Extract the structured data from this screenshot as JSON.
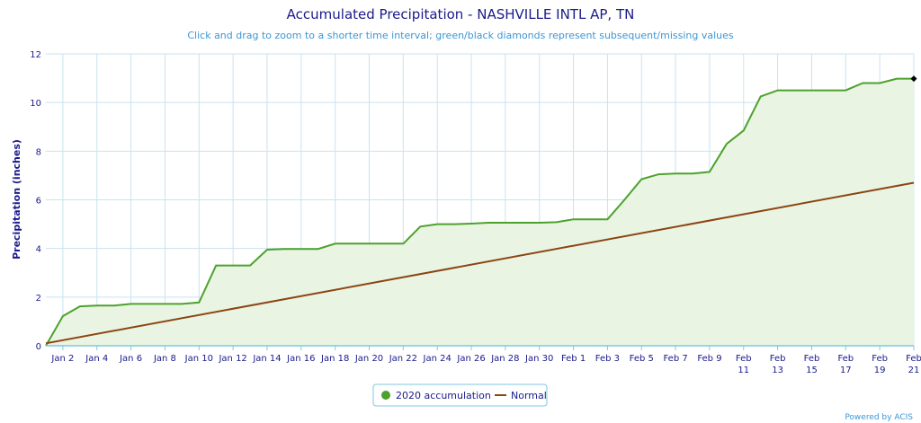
{
  "chart_data": {
    "type": "area",
    "title": "Accumulated Precipitation - NASHVILLE INTL AP, TN",
    "subtitle": "Click and drag to zoom to a shorter time interval; green/black diamonds represent subsequent/missing values",
    "ylabel": "Precipitation (inches)",
    "xlabel": "",
    "ylim": [
      0,
      12
    ],
    "yticks": [
      0,
      2,
      4,
      6,
      8,
      10,
      12
    ],
    "grid": true,
    "start_date": "2020-01-01",
    "end_date": "2020-02-21",
    "x_tick_labels": [
      {
        "date": "2020-01-02",
        "lines": [
          "Jan 2"
        ]
      },
      {
        "date": "2020-01-04",
        "lines": [
          "Jan 4"
        ]
      },
      {
        "date": "2020-01-06",
        "lines": [
          "Jan 6"
        ]
      },
      {
        "date": "2020-01-08",
        "lines": [
          "Jan 8"
        ]
      },
      {
        "date": "2020-01-10",
        "lines": [
          "Jan 10"
        ]
      },
      {
        "date": "2020-01-12",
        "lines": [
          "Jan 12"
        ]
      },
      {
        "date": "2020-01-14",
        "lines": [
          "Jan 14"
        ]
      },
      {
        "date": "2020-01-16",
        "lines": [
          "Jan 16"
        ]
      },
      {
        "date": "2020-01-18",
        "lines": [
          "Jan 18"
        ]
      },
      {
        "date": "2020-01-20",
        "lines": [
          "Jan 20"
        ]
      },
      {
        "date": "2020-01-22",
        "lines": [
          "Jan 22"
        ]
      },
      {
        "date": "2020-01-24",
        "lines": [
          "Jan 24"
        ]
      },
      {
        "date": "2020-01-26",
        "lines": [
          "Jan 26"
        ]
      },
      {
        "date": "2020-01-28",
        "lines": [
          "Jan 28"
        ]
      },
      {
        "date": "2020-01-30",
        "lines": [
          "Jan 30"
        ]
      },
      {
        "date": "2020-02-01",
        "lines": [
          "Feb 1"
        ]
      },
      {
        "date": "2020-02-03",
        "lines": [
          "Feb 3"
        ]
      },
      {
        "date": "2020-02-05",
        "lines": [
          "Feb 5"
        ]
      },
      {
        "date": "2020-02-07",
        "lines": [
          "Feb 7"
        ]
      },
      {
        "date": "2020-02-09",
        "lines": [
          "Feb 9"
        ]
      },
      {
        "date": "2020-02-11",
        "lines": [
          "Feb",
          "11"
        ]
      },
      {
        "date": "2020-02-13",
        "lines": [
          "Feb",
          "13"
        ]
      },
      {
        "date": "2020-02-15",
        "lines": [
          "Feb",
          "15"
        ]
      },
      {
        "date": "2020-02-17",
        "lines": [
          "Feb",
          "17"
        ]
      },
      {
        "date": "2020-02-19",
        "lines": [
          "Feb",
          "19"
        ]
      },
      {
        "date": "2020-02-21",
        "lines": [
          "Feb",
          "21"
        ]
      }
    ],
    "series": [
      {
        "name": "2020 accumulation",
        "color": "#4ca22c",
        "fill": "#eaf4e3",
        "x": [
          "2020-01-01",
          "2020-01-02",
          "2020-01-03",
          "2020-01-04",
          "2020-01-05",
          "2020-01-06",
          "2020-01-07",
          "2020-01-08",
          "2020-01-09",
          "2020-01-10",
          "2020-01-11",
          "2020-01-12",
          "2020-01-13",
          "2020-01-14",
          "2020-01-15",
          "2020-01-16",
          "2020-01-17",
          "2020-01-18",
          "2020-01-19",
          "2020-01-20",
          "2020-01-21",
          "2020-01-22",
          "2020-01-23",
          "2020-01-24",
          "2020-01-25",
          "2020-01-26",
          "2020-01-27",
          "2020-01-28",
          "2020-01-29",
          "2020-01-30",
          "2020-01-31",
          "2020-02-01",
          "2020-02-02",
          "2020-02-03",
          "2020-02-04",
          "2020-02-05",
          "2020-02-06",
          "2020-02-07",
          "2020-02-08",
          "2020-02-09",
          "2020-02-10",
          "2020-02-11",
          "2020-02-12",
          "2020-02-13",
          "2020-02-14",
          "2020-02-15",
          "2020-02-16",
          "2020-02-17",
          "2020-02-18",
          "2020-02-19",
          "2020-02-20",
          "2020-02-21"
        ],
        "values": [
          0.0,
          1.22,
          1.62,
          1.65,
          1.65,
          1.72,
          1.72,
          1.72,
          1.72,
          1.78,
          3.3,
          3.3,
          3.3,
          3.95,
          3.98,
          3.98,
          3.98,
          4.2,
          4.2,
          4.2,
          4.2,
          4.2,
          4.9,
          5.0,
          5.0,
          5.02,
          5.06,
          5.06,
          5.06,
          5.06,
          5.08,
          5.2,
          5.2,
          5.2,
          6.0,
          6.85,
          7.05,
          7.08,
          7.08,
          7.15,
          8.3,
          8.85,
          10.25,
          10.5,
          10.5,
          10.5,
          10.5,
          10.5,
          10.8,
          10.8,
          10.98,
          10.98
        ]
      },
      {
        "name": "Normal",
        "color": "#8b4513",
        "x": [
          "2020-01-01",
          "2020-02-21"
        ],
        "values": [
          0.1,
          6.7
        ]
      }
    ],
    "markers": [
      {
        "date": "2020-02-21",
        "value": 10.98,
        "color": "#000000",
        "shape": "diamond"
      }
    ],
    "legend": {
      "position": "bottom-center"
    }
  },
  "credit": "Powered by ACIS"
}
